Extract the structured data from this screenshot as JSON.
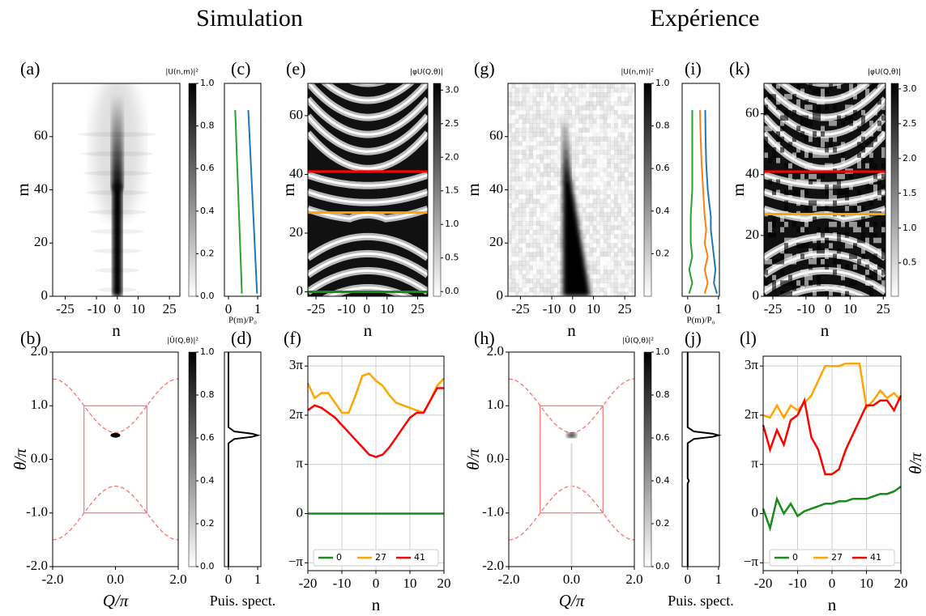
{
  "columns": [
    "Simulation",
    "Expérience"
  ],
  "chart_data": [
    {
      "type": "heatmap",
      "title": "(a)",
      "xlabel": "n",
      "ylabel": "m",
      "xlim": [
        -31,
        30
      ],
      "xticks": [
        -25,
        -10,
        0,
        10,
        25
      ],
      "ylim": [
        0,
        80
      ],
      "yticks": [
        0,
        20,
        40,
        60
      ],
      "colorbar": {
        "label": "|U(n,m)|²",
        "lim": [
          0,
          1
        ],
        "ticks": [
          {
            "value": 0,
            "label": "0.0"
          },
          0.2,
          0.4,
          0.6,
          0.8,
          {
            "value": 1,
            "label": "1.0"
          }
        ]
      }
    },
    {
      "type": "profile",
      "title": "(c)",
      "xlabel": "P(m)/P₀",
      "xlim": [
        -0.14,
        1.11
      ],
      "xticks": [
        0,
        1
      ],
      "ylim": [
        0,
        80
      ],
      "y": [
        1,
        70
      ],
      "series": [
        {
          "color": "#1f77b4",
          "values": [
            0.98,
            0.68
          ]
        },
        {
          "color": "#2ca02c",
          "values": [
            0.46,
            0.23
          ]
        }
      ]
    },
    {
      "type": "heatmap",
      "title": "(e)",
      "xlabel": "n",
      "ylabel": "m",
      "xlim": [
        -29,
        30
      ],
      "xticks": [
        -25,
        -10,
        0,
        10,
        25
      ],
      "ylim": [
        -1.5,
        71
      ],
      "yticks": [
        0,
        20,
        40,
        60
      ],
      "hlines": [
        {
          "value": 41,
          "color": "#ff0000"
        },
        {
          "value": 27,
          "color": "#ffa500"
        },
        {
          "value": 0,
          "color": "#1a8a1a"
        }
      ],
      "colorbar": {
        "label": "|φU(Q,θ)|",
        "lim": [
          -0.07,
          3.1
        ],
        "ticks": [
          {
            "value": 0,
            "label": "0.0"
          },
          0.5,
          {
            "value": 1,
            "label": "1.0"
          },
          1.5,
          {
            "value": 2,
            "label": "2.0"
          },
          2.5,
          {
            "value": 3,
            "label": "3.0"
          }
        ]
      }
    },
    {
      "type": "heatmap",
      "title": "(b)",
      "xlabel": "Q/π",
      "ylabel": "θ/π",
      "xlim": [
        -2,
        2
      ],
      "xticks": [
        {
          "value": -2,
          "label": "-2.0"
        },
        {
          "value": 0,
          "label": "0.0"
        },
        {
          "value": 2,
          "label": "2.0"
        }
      ],
      "ylim": [
        -2,
        2
      ],
      "yticks": [
        {
          "value": -2,
          "label": "-2.0"
        },
        {
          "value": -1,
          "label": "-1.0"
        },
        {
          "value": 0,
          "label": "0.0"
        },
        {
          "value": 1,
          "label": "1.0"
        },
        {
          "value": 2,
          "label": "2.0"
        }
      ],
      "colorbar": {
        "label": "|Û(Q,θ)|²",
        "lim": [
          0,
          1
        ],
        "ticks": [
          {
            "value": 0,
            "label": "0.0"
          },
          0.2,
          0.4,
          0.6,
          0.8,
          {
            "value": 1,
            "label": "1.0"
          }
        ]
      }
    },
    {
      "type": "profile",
      "title": "(d)",
      "xlabel": "Puis. spect.",
      "xlim": [
        -0.14,
        1.11
      ],
      "xticks": [
        0,
        1
      ],
      "ylim": [
        -2,
        2
      ],
      "y": [
        -2,
        0.3,
        0.38,
        0.42,
        0.45,
        0.48,
        0.52,
        0.6,
        2
      ],
      "series": [
        {
          "color": "#000000",
          "values": [
            0,
            0,
            0.2,
            0.8,
            1.0,
            0.8,
            0.2,
            0,
            0
          ]
        }
      ]
    },
    {
      "type": "line",
      "title": "(f)",
      "xlabel": "n",
      "xlim": [
        -20,
        20
      ],
      "xticks": [
        -20,
        -10,
        0,
        10,
        20
      ],
      "ylim": [
        -1.16,
        3.2
      ],
      "yticks": [
        {
          "value": -1,
          "label": "−π"
        },
        0,
        {
          "value": 1,
          "label": "π"
        },
        {
          "value": 2,
          "label": "2π"
        },
        {
          "value": 3,
          "label": "3π"
        }
      ],
      "grid": true,
      "legend": "lower center",
      "x": [
        -20,
        -18,
        -16,
        -14,
        -12,
        -10,
        -8,
        -6,
        -4,
        -2,
        0,
        2,
        4,
        6,
        8,
        10,
        12,
        14,
        16,
        18,
        20
      ],
      "series": [
        {
          "name": "0",
          "color": "#1a8a1a",
          "values": [
            0,
            0,
            0,
            0,
            0,
            0,
            0,
            0,
            0,
            0,
            0,
            0,
            0,
            0,
            0,
            0,
            0,
            0,
            0,
            0,
            0
          ]
        },
        {
          "name": "27",
          "color": "#ffa500",
          "values": [
            2.65,
            2.35,
            2.45,
            2.45,
            2.25,
            2.05,
            2.05,
            2.4,
            2.8,
            2.85,
            2.7,
            2.6,
            2.4,
            2.25,
            2.2,
            2.15,
            2.1,
            2.05,
            2.3,
            2.6,
            2.75
          ]
        },
        {
          "name": "41",
          "color": "#ff0000",
          "values": [
            2.1,
            2.2,
            2.15,
            2.05,
            1.95,
            1.8,
            1.65,
            1.5,
            1.35,
            1.2,
            1.15,
            1.2,
            1.35,
            1.55,
            1.75,
            1.95,
            2.05,
            2.05,
            2.3,
            2.55,
            2.55
          ]
        }
      ]
    },
    {
      "type": "heatmap",
      "title": "(g)",
      "xlabel": "n",
      "ylabel": "m",
      "xlim": [
        -31,
        30
      ],
      "xticks": [
        -25,
        -10,
        0,
        10,
        25
      ],
      "ylim": [
        0,
        80
      ],
      "yticks": [
        0,
        20,
        40,
        60
      ],
      "colorbar": {
        "label": "|U(n,m)|²",
        "lim": [
          0,
          1
        ],
        "ticks": [
          0.2,
          0.4,
          0.6,
          0.8,
          {
            "value": 1,
            "label": "1.0"
          }
        ]
      }
    },
    {
      "type": "profile",
      "title": "(i)",
      "xlabel": "P(m)/P₀",
      "xlim": [
        -0.18,
        1.03
      ],
      "xticks": [
        0,
        1
      ],
      "ylim": [
        0,
        80
      ],
      "y": [
        1,
        5,
        10,
        15,
        20,
        25,
        30,
        40,
        50,
        60,
        70
      ],
      "series": [
        {
          "color": "#1f77b4",
          "values": [
            0.95,
            0.85,
            0.9,
            0.85,
            0.8,
            0.75,
            0.75,
            0.65,
            0.6,
            0.58,
            0.57
          ]
        },
        {
          "color": "#ff7f0e",
          "values": [
            0.55,
            0.65,
            0.55,
            0.65,
            0.55,
            0.6,
            0.55,
            0.5,
            0.45,
            0.42,
            0.4
          ]
        },
        {
          "color": "#2ca02c",
          "values": [
            0.05,
            0.15,
            0.05,
            0.15,
            0.1,
            0.1,
            0.1,
            0.15,
            0.15,
            0.15,
            0.15
          ]
        }
      ]
    },
    {
      "type": "heatmap",
      "title": "(k)",
      "xlabel": "n",
      "ylabel": "m",
      "xlim": [
        -29,
        26
      ],
      "xticks": [
        -25,
        -10,
        0,
        10,
        25
      ],
      "ylim": [
        0,
        70
      ],
      "yticks": [
        0,
        20,
        40,
        60
      ],
      "hlines": [
        {
          "value": 41,
          "color": "#ff0000"
        },
        {
          "value": 27,
          "color": "#ffa500"
        }
      ],
      "colorbar": {
        "label": "|φU(Q,θ)|",
        "lim": [
          0.02,
          3.08
        ],
        "ticks": [
          0.5,
          {
            "value": 1,
            "label": "1.0"
          },
          1.5,
          {
            "value": 2,
            "label": "2.0"
          },
          2.5,
          {
            "value": 3,
            "label": "3.0"
          }
        ]
      }
    },
    {
      "type": "heatmap",
      "title": "(h)",
      "xlabel": "Q/π",
      "ylabel": "θ/π",
      "xlim": [
        -2,
        2
      ],
      "xticks": [
        {
          "value": -2,
          "label": "-2.0"
        },
        {
          "value": 0,
          "label": "0.0"
        },
        {
          "value": 2,
          "label": "2.0"
        }
      ],
      "ylim": [
        -2,
        2
      ],
      "yticks": [
        {
          "value": -2,
          "label": "-2.0"
        },
        {
          "value": -1,
          "label": "-1.0"
        },
        {
          "value": 0,
          "label": "0.0"
        },
        {
          "value": 1,
          "label": "1.0"
        },
        {
          "value": 2,
          "label": "2.0"
        }
      ],
      "colorbar": {
        "label": "|Û(Q,θ)|²",
        "lim": [
          0,
          1
        ],
        "ticks": [
          {
            "value": 0,
            "label": "0.0"
          },
          0.2,
          0.4,
          0.6,
          0.8,
          {
            "value": 1,
            "label": "1.0"
          }
        ]
      }
    },
    {
      "type": "profile",
      "title": "(j)",
      "xlabel": "Puis. spect.",
      "xlim": [
        -0.18,
        1.03
      ],
      "xticks": [
        0,
        1
      ],
      "ylim": [
        -2,
        2
      ],
      "y": [
        -2,
        -0.45,
        -0.4,
        -0.35,
        0.3,
        0.38,
        0.42,
        0.45,
        0.48,
        0.52,
        0.6,
        2
      ],
      "series": [
        {
          "color": "#000000",
          "values": [
            0,
            0,
            0.04,
            0,
            0,
            0.2,
            0.8,
            1.0,
            0.8,
            0.2,
            0,
            0
          ]
        }
      ]
    },
    {
      "type": "line",
      "title": "(l)",
      "xlabel": "n",
      "ylabel": "θ/π",
      "xlim": [
        -20,
        20
      ],
      "xticks": [
        -20,
        -10,
        0,
        10,
        20
      ],
      "ylim": [
        -1.16,
        3.2
      ],
      "yticks": [
        {
          "value": -1,
          "label": "−π"
        },
        0,
        {
          "value": 1,
          "label": "π"
        },
        {
          "value": 2,
          "label": "2π"
        },
        {
          "value": 3,
          "label": "3π"
        }
      ],
      "grid": true,
      "legend": "lower center",
      "x": [
        -20,
        -18,
        -16,
        -14,
        -12,
        -10,
        -8,
        -6,
        -4,
        -2,
        0,
        2,
        4,
        6,
        8,
        10,
        12,
        14,
        16,
        18,
        20
      ],
      "series": [
        {
          "name": "0",
          "color": "#1a8a1a",
          "values": [
            0.1,
            -0.3,
            0.3,
            0.0,
            0.2,
            -0.05,
            0.05,
            0.1,
            0.15,
            0.2,
            0.2,
            0.25,
            0.25,
            0.3,
            0.3,
            0.3,
            0.35,
            0.4,
            0.4,
            0.45,
            0.55
          ]
        },
        {
          "name": "27",
          "color": "#ffa500",
          "values": [
            2.0,
            1.95,
            2.2,
            1.95,
            2.2,
            2.1,
            2.25,
            2.4,
            2.7,
            3.0,
            3.0,
            3.0,
            3.05,
            3.05,
            3.05,
            2.15,
            2.3,
            2.5,
            2.35,
            2.45,
            2.3
          ]
        },
        {
          "name": "41",
          "color": "#ff0000",
          "values": [
            1.8,
            1.3,
            1.7,
            1.4,
            1.9,
            2.0,
            2.3,
            1.55,
            1.3,
            0.8,
            0.8,
            0.9,
            1.3,
            1.6,
            1.9,
            2.2,
            2.2,
            2.3,
            2.3,
            2.1,
            2.4
          ]
        }
      ]
    }
  ]
}
